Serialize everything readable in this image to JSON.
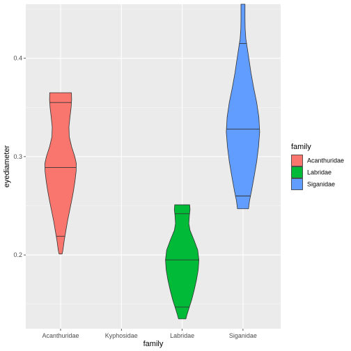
{
  "chart_data": {
    "type": "violin",
    "xlabel": "family",
    "ylabel": "eyediameter",
    "categories": [
      "Acanthuridae",
      "Kyphosidae",
      "Labridae",
      "Siganidae"
    ],
    "ylim": [
      0.125,
      0.455
    ],
    "yticks": [
      0.2,
      0.3,
      0.4
    ],
    "ytick_labels": [
      "0.2",
      "0.3",
      "0.4"
    ],
    "grid": true,
    "legend": {
      "title": "family",
      "position": "right",
      "entries": [
        {
          "label": "Acanthuridae",
          "color": "#F8766D"
        },
        {
          "label": "Labridae",
          "color": "#00BA38"
        },
        {
          "label": "Siganidae",
          "color": "#619CFF"
        }
      ]
    },
    "violins": [
      {
        "category": "Acanthuridae",
        "color": "#F8766D",
        "quantiles": [
          0.219,
          0.289,
          0.355
        ],
        "profile": [
          [
            0.201,
            0.09
          ],
          [
            0.205,
            0.14
          ],
          [
            0.215,
            0.22
          ],
          [
            0.225,
            0.32
          ],
          [
            0.235,
            0.42
          ],
          [
            0.245,
            0.54
          ],
          [
            0.255,
            0.66
          ],
          [
            0.265,
            0.77
          ],
          [
            0.275,
            0.86
          ],
          [
            0.285,
            0.93
          ],
          [
            0.293,
            0.94
          ],
          [
            0.3,
            0.85
          ],
          [
            0.31,
            0.66
          ],
          [
            0.32,
            0.52
          ],
          [
            0.33,
            0.5
          ],
          [
            0.34,
            0.56
          ],
          [
            0.35,
            0.63
          ],
          [
            0.358,
            0.66
          ],
          [
            0.365,
            0.65
          ]
        ]
      },
      {
        "category": "Labridae",
        "color": "#00BA38",
        "quantiles": [
          0.147,
          0.195,
          0.242
        ],
        "profile": [
          [
            0.135,
            0.22
          ],
          [
            0.14,
            0.3
          ],
          [
            0.147,
            0.43
          ],
          [
            0.155,
            0.58
          ],
          [
            0.165,
            0.73
          ],
          [
            0.175,
            0.86
          ],
          [
            0.185,
            0.96
          ],
          [
            0.195,
            1.0
          ],
          [
            0.205,
            0.93
          ],
          [
            0.215,
            0.71
          ],
          [
            0.225,
            0.47
          ],
          [
            0.232,
            0.4
          ],
          [
            0.24,
            0.43
          ],
          [
            0.246,
            0.47
          ],
          [
            0.251,
            0.45
          ]
        ]
      },
      {
        "category": "Siganidae",
        "color": "#619CFF",
        "quantiles": [
          0.26,
          0.328,
          0.415
        ],
        "profile": [
          [
            0.247,
            0.33
          ],
          [
            0.255,
            0.39
          ],
          [
            0.265,
            0.51
          ],
          [
            0.28,
            0.67
          ],
          [
            0.295,
            0.82
          ],
          [
            0.31,
            0.93
          ],
          [
            0.325,
            1.0
          ],
          [
            0.34,
            0.95
          ],
          [
            0.355,
            0.82
          ],
          [
            0.37,
            0.64
          ],
          [
            0.385,
            0.48
          ],
          [
            0.4,
            0.35
          ],
          [
            0.41,
            0.26
          ],
          [
            0.42,
            0.17
          ],
          [
            0.43,
            0.13
          ],
          [
            0.44,
            0.12
          ],
          [
            0.448,
            0.12
          ],
          [
            0.455,
            0.12
          ]
        ]
      }
    ]
  }
}
